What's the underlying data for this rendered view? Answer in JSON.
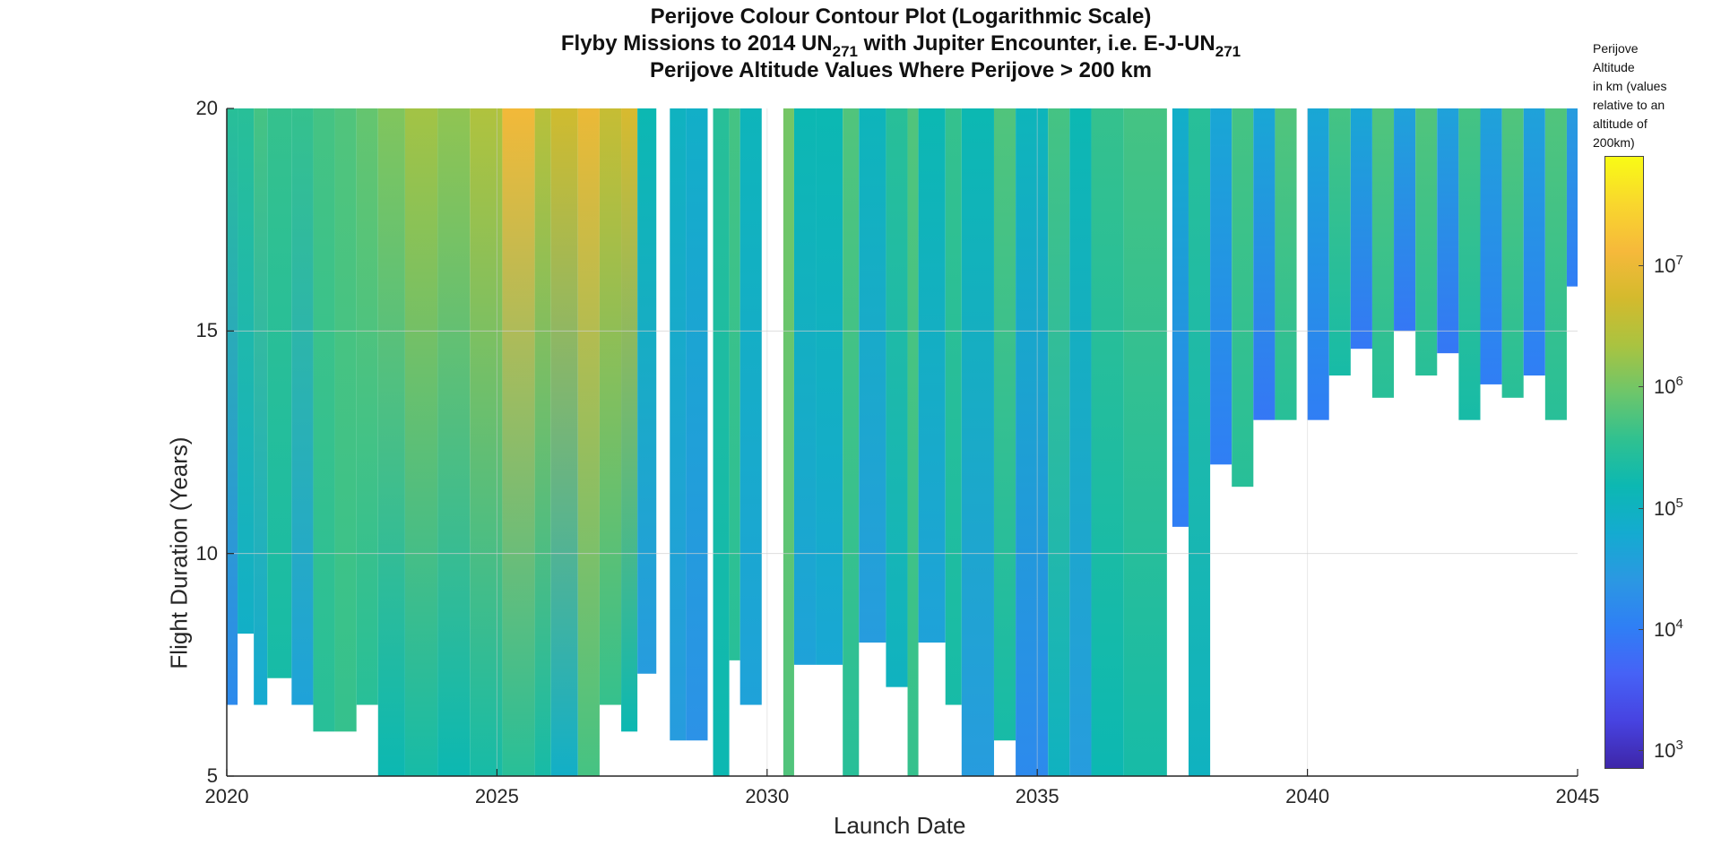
{
  "chart_data": {
    "type": "heatmap",
    "title_lines": [
      {
        "text": "Perijove Colour Contour Plot (Logarithmic Scale)",
        "parts": []
      },
      {
        "text": "",
        "parts": [
          {
            "t": "Flyby Missions to 2014 UN"
          },
          {
            "sub": "271"
          },
          {
            "t": " with Jupiter Encounter, i.e. E-J-UN"
          },
          {
            "sub": "271"
          }
        ]
      },
      {
        "text": "Perijove Altitude Values Where Perijove > 200 km",
        "parts": []
      }
    ],
    "xlabel": "Launch Date",
    "ylabel": "Flight Duration (Years)",
    "xlim": [
      2020,
      2045
    ],
    "ylim": [
      5,
      20
    ],
    "xticks": [
      2020,
      2025,
      2030,
      2035,
      2040,
      2045
    ],
    "yticks": [
      5,
      10,
      15,
      20
    ],
    "grid": true,
    "colorbar": {
      "title_lines": [
        "Perijove",
        "Altitude",
        "in km (values",
        "relative to an",
        "altitude of",
        "200km)"
      ],
      "scale": "log",
      "range": [
        700,
        80000000
      ],
      "ticks": [
        {
          "value": 1000,
          "base": "10",
          "exp": "3"
        },
        {
          "value": 10000,
          "base": "10",
          "exp": "4"
        },
        {
          "value": 100000,
          "base": "10",
          "exp": "5"
        },
        {
          "value": 1000000,
          "base": "10",
          "exp": "6"
        },
        {
          "value": 10000000,
          "base": "10",
          "exp": "7"
        }
      ],
      "colormap": [
        "#3e26a8",
        "#4743e1",
        "#4662f6",
        "#2f7ff5",
        "#2b98e2",
        "#14abd0",
        "#0cb8b2",
        "#30c190",
        "#6ec66a",
        "#aac340",
        "#d4ba2d",
        "#f6b93b",
        "#f9d72d",
        "#f9fb15"
      ]
    },
    "series": [
      {
        "x0": 2020.0,
        "x1": 2020.2,
        "ymin": 6.6,
        "values": [
          15000.0,
          300000.0
        ]
      },
      {
        "x0": 2020.2,
        "x1": 2020.5,
        "ymin": 8.2,
        "values": [
          80000.0,
          300000.0
        ]
      },
      {
        "x0": 2020.5,
        "x1": 2020.75,
        "ymin": 6.6,
        "values": [
          60000.0,
          500000.0
        ]
      },
      {
        "x0": 2020.75,
        "x1": 2021.2,
        "ymin": 7.2,
        "values": [
          200000.0,
          400000.0
        ]
      },
      {
        "x0": 2021.2,
        "x1": 2021.6,
        "ymin": 6.6,
        "values": [
          40000.0,
          400000.0
        ]
      },
      {
        "x0": 2021.6,
        "x1": 2022.0,
        "ymin": 6.0,
        "values": [
          300000.0,
          500000.0
        ]
      },
      {
        "x0": 2022.0,
        "x1": 2022.4,
        "ymin": 6.0,
        "values": [
          400000.0,
          600000.0
        ]
      },
      {
        "x0": 2022.4,
        "x1": 2022.8,
        "ymin": 6.6,
        "values": [
          300000.0,
          800000.0
        ]
      },
      {
        "x0": 2022.8,
        "x1": 2023.3,
        "ymin": 5.0,
        "values": [
          150000.0,
          1200000.0
        ]
      },
      {
        "x0": 2023.3,
        "x1": 2023.9,
        "ymin": 5.0,
        "values": [
          200000.0,
          2000000.0
        ]
      },
      {
        "x0": 2023.9,
        "x1": 2024.5,
        "ymin": 5.0,
        "values": [
          150000.0,
          1500000.0
        ]
      },
      {
        "x0": 2024.5,
        "x1": 2025.1,
        "ymin": 5.0,
        "values": [
          200000.0,
          2500000.0
        ]
      },
      {
        "x0": 2025.1,
        "x1": 2025.7,
        "ymin": 5.0,
        "values": [
          300000.0,
          12000000.0
        ]
      },
      {
        "x0": 2025.7,
        "x1": 2026.0,
        "ymin": 5.0,
        "values": [
          200000.0,
          3000000.0
        ]
      },
      {
        "x0": 2026.0,
        "x1": 2026.5,
        "ymin": 5.0,
        "values": [
          80000.0,
          5000000.0
        ]
      },
      {
        "x0": 2026.5,
        "x1": 2026.9,
        "ymin": 5.0,
        "values": [
          500000.0,
          10000000.0
        ]
      },
      {
        "x0": 2026.9,
        "x1": 2027.3,
        "ymin": 6.6,
        "values": [
          400000.0,
          4000000.0
        ]
      },
      {
        "x0": 2027.3,
        "x1": 2027.6,
        "ymin": 6.0,
        "values": [
          150000.0,
          6000000.0
        ]
      },
      {
        "x0": 2027.6,
        "x1": 2027.95,
        "ymin": 7.3,
        "values": [
          30000.0,
          150000.0
        ]
      },
      {
        "x0": 2028.2,
        "x1": 2028.5,
        "ymin": 5.8,
        "values": [
          30000.0,
          100000.0
        ]
      },
      {
        "x0": 2028.5,
        "x1": 2028.9,
        "ymin": 5.8,
        "values": [
          20000.0,
          80000.0
        ]
      },
      {
        "x0": 2029.0,
        "x1": 2029.3,
        "ymin": 5.0,
        "values": [
          150000.0,
          300000.0
        ]
      },
      {
        "x0": 2029.3,
        "x1": 2029.5,
        "ymin": 7.6,
        "values": [
          300000.0,
          500000.0
        ]
      },
      {
        "x0": 2029.5,
        "x1": 2029.9,
        "ymin": 6.6,
        "values": [
          40000.0,
          120000.0
        ]
      },
      {
        "x0": 2030.3,
        "x1": 2030.5,
        "ymin": 5.0,
        "values": [
          600000.0,
          1000000.0
        ]
      },
      {
        "x0": 2030.5,
        "x1": 2030.9,
        "ymin": 7.5,
        "values": [
          40000.0,
          150000.0
        ]
      },
      {
        "x0": 2030.9,
        "x1": 2031.4,
        "ymin": 7.5,
        "values": [
          50000.0,
          150000.0
        ]
      },
      {
        "x0": 2031.4,
        "x1": 2031.7,
        "ymin": 5.0,
        "values": [
          300000.0,
          600000.0
        ]
      },
      {
        "x0": 2031.7,
        "x1": 2032.2,
        "ymin": 8.0,
        "values": [
          30000.0,
          120000.0
        ]
      },
      {
        "x0": 2032.2,
        "x1": 2032.6,
        "ymin": 7.0,
        "values": [
          100000.0,
          300000.0
        ]
      },
      {
        "x0": 2032.6,
        "x1": 2032.8,
        "ymin": 5.0,
        "values": [
          400000.0,
          600000.0
        ]
      },
      {
        "x0": 2032.8,
        "x1": 2033.3,
        "ymin": 8.0,
        "values": [
          40000.0,
          150000.0
        ]
      },
      {
        "x0": 2033.3,
        "x1": 2033.6,
        "ymin": 6.6,
        "values": [
          200000.0,
          400000.0
        ]
      },
      {
        "x0": 2033.6,
        "x1": 2034.2,
        "ymin": 5.0,
        "values": [
          30000.0,
          150000.0
        ]
      },
      {
        "x0": 2034.2,
        "x1": 2034.6,
        "ymin": 5.8,
        "values": [
          200000.0,
          600000.0
        ]
      },
      {
        "x0": 2034.6,
        "x1": 2035.2,
        "ymin": 5.0,
        "values": [
          15000.0,
          120000.0
        ]
      },
      {
        "x0": 2035.2,
        "x1": 2035.6,
        "ymin": 5.0,
        "values": [
          100000.0,
          500000.0
        ]
      },
      {
        "x0": 2035.6,
        "x1": 2036.0,
        "ymin": 5.0,
        "values": [
          30000.0,
          150000.0
        ]
      },
      {
        "x0": 2036.0,
        "x1": 2036.6,
        "ymin": 5.0,
        "values": [
          150000.0,
          400000.0
        ]
      },
      {
        "x0": 2036.6,
        "x1": 2037.4,
        "ymin": 5.0,
        "values": [
          200000.0,
          500000.0
        ]
      },
      {
        "x0": 2037.5,
        "x1": 2037.8,
        "ymin": 10.6,
        "values": [
          10000.0,
          80000.0
        ]
      },
      {
        "x0": 2037.8,
        "x1": 2038.2,
        "ymin": 5.0,
        "values": [
          100000.0,
          300000.0
        ]
      },
      {
        "x0": 2038.2,
        "x1": 2038.6,
        "ymin": 12.0,
        "values": [
          10000.0,
          50000.0
        ]
      },
      {
        "x0": 2038.6,
        "x1": 2039.0,
        "ymin": 11.5,
        "values": [
          300000.0,
          500000.0
        ]
      },
      {
        "x0": 2039.0,
        "x1": 2039.4,
        "ymin": 13.0,
        "values": [
          8000.0,
          50000.0
        ]
      },
      {
        "x0": 2039.4,
        "x1": 2039.8,
        "ymin": 13.0,
        "values": [
          300000.0,
          600000.0
        ]
      },
      {
        "x0": 2040.0,
        "x1": 2040.4,
        "ymin": 13.0,
        "values": [
          10000.0,
          50000.0
        ]
      },
      {
        "x0": 2040.4,
        "x1": 2040.8,
        "ymin": 14.0,
        "values": [
          200000.0,
          500000.0
        ]
      },
      {
        "x0": 2040.8,
        "x1": 2041.2,
        "ymin": 14.6,
        "values": [
          8000.0,
          50000.0
        ]
      },
      {
        "x0": 2041.2,
        "x1": 2041.6,
        "ymin": 13.5,
        "values": [
          300000.0,
          600000.0
        ]
      },
      {
        "x0": 2041.6,
        "x1": 2042.0,
        "ymin": 15.0,
        "values": [
          8000.0,
          40000.0
        ]
      },
      {
        "x0": 2042.0,
        "x1": 2042.4,
        "ymin": 14.0,
        "values": [
          300000.0,
          600000.0
        ]
      },
      {
        "x0": 2042.4,
        "x1": 2042.8,
        "ymin": 14.5,
        "values": [
          8000.0,
          40000.0
        ]
      },
      {
        "x0": 2042.8,
        "x1": 2043.2,
        "ymin": 13.0,
        "values": [
          200000.0,
          500000.0
        ]
      },
      {
        "x0": 2043.2,
        "x1": 2043.6,
        "ymin": 13.8,
        "values": [
          10000.0,
          40000.0
        ]
      },
      {
        "x0": 2043.6,
        "x1": 2044.0,
        "ymin": 13.5,
        "values": [
          300000.0,
          600000.0
        ]
      },
      {
        "x0": 2044.0,
        "x1": 2044.4,
        "ymin": 14.0,
        "values": [
          10000.0,
          40000.0
        ]
      },
      {
        "x0": 2044.4,
        "x1": 2044.8,
        "ymin": 13.0,
        "values": [
          300000.0,
          600000.0
        ]
      },
      {
        "x0": 2044.8,
        "x1": 2045.0,
        "ymin": 16.0,
        "values": [
          10000.0,
          30000.0
        ]
      }
    ]
  }
}
